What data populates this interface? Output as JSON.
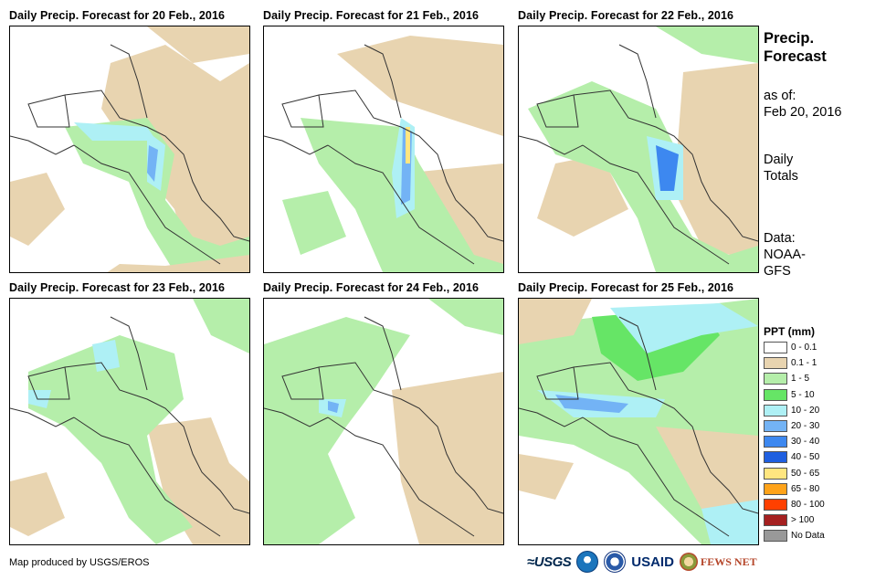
{
  "panels": [
    {
      "title": "Daily Precip. Forecast for 20 Feb., 2016"
    },
    {
      "title": "Daily Precip. Forecast for 21 Feb., 2016"
    },
    {
      "title": "Daily Precip. Forecast for 22 Feb., 2016"
    },
    {
      "title": "Daily Precip. Forecast for 23 Feb., 2016"
    },
    {
      "title": "Daily Precip. Forecast for 24 Feb., 2016"
    },
    {
      "title": "Daily Precip. Forecast for 25 Feb., 2016"
    }
  ],
  "side": {
    "title_line1": "Precip.",
    "title_line2": "Forecast",
    "asof_label": "as of:",
    "asof_date": "Feb 20, 2016",
    "daily_line1": "Daily",
    "daily_line2": "Totals",
    "data_line1": "Data:",
    "data_line2": "NOAA-",
    "data_line3": "GFS"
  },
  "legend": {
    "title": "PPT (mm)",
    "items": [
      {
        "label": "0 - 0.1",
        "color": "#ffffff"
      },
      {
        "label": "0.1 - 1",
        "color": "#e8d4b0"
      },
      {
        "label": "1 - 5",
        "color": "#b5eeaa"
      },
      {
        "label": "5 - 10",
        "color": "#66e566"
      },
      {
        "label": "10 - 20",
        "color": "#aef0f5"
      },
      {
        "label": "20 - 30",
        "color": "#73b3f5"
      },
      {
        "label": "30 - 40",
        "color": "#3d88f0"
      },
      {
        "label": "40 - 50",
        "color": "#1f5fe0"
      },
      {
        "label": "50 - 65",
        "color": "#ffe680"
      },
      {
        "label": "65 - 80",
        "color": "#ffa31a"
      },
      {
        "label": "80 - 100",
        "color": "#ff4000"
      },
      {
        "label": "> 100",
        "color": "#a52020"
      },
      {
        "label": "No Data",
        "color": "#999999"
      }
    ]
  },
  "footer": {
    "credit": "Map produced by USGS/EROS",
    "logo_usgs": "≈USGS",
    "logo_usaid": "USAID",
    "logo_fews": "FEWS NET"
  }
}
